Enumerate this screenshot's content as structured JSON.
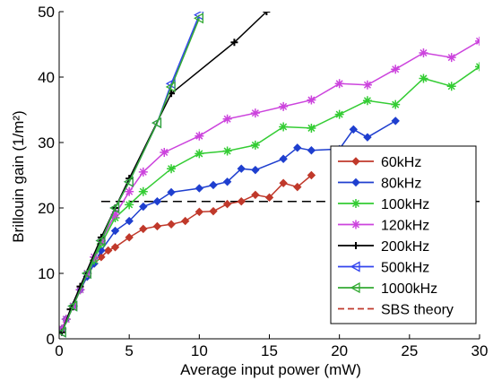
{
  "chart_data": {
    "type": "line",
    "xlabel": "Average input power (mW)",
    "ylabel": "Brillouin gain (1/m²)",
    "xlim": [
      0,
      30
    ],
    "ylim": [
      0,
      50
    ],
    "xticks": [
      0,
      5,
      10,
      15,
      20,
      25,
      30
    ],
    "yticks": [
      0,
      10,
      20,
      30,
      40,
      50
    ],
    "grid": false,
    "legend_position": "right-center",
    "series": [
      {
        "name": "60kHz",
        "color": "#c0392b",
        "marker": "diamond",
        "x": [
          0.2,
          0.5,
          1.0,
          1.5,
          2.0,
          2.5,
          3.0,
          3.5,
          4.0,
          5.0,
          6.0,
          7.0,
          8.0,
          9.0,
          10.0,
          11.0,
          12.0,
          13.0,
          14.0,
          15.0,
          16.0,
          17.0,
          18.0
        ],
        "y": [
          1.5,
          3.0,
          5.0,
          7.5,
          9.5,
          11.5,
          12.5,
          13.5,
          14.0,
          15.5,
          16.8,
          17.2,
          17.5,
          18.0,
          19.4,
          19.5,
          20.6,
          21.0,
          22.0,
          21.6,
          23.8,
          23.2,
          25.0
        ]
      },
      {
        "name": "80kHz",
        "color": "#1f3fcf",
        "marker": "diamond",
        "x": [
          0.2,
          0.5,
          1.0,
          1.5,
          2.0,
          2.5,
          3.0,
          4.0,
          5.0,
          6.0,
          7.0,
          8.0,
          10.0,
          11.0,
          12.0,
          13.0,
          14.0,
          16.0,
          17.0,
          18.0,
          20.0,
          21.0,
          22.0,
          24.0
        ],
        "y": [
          1.5,
          3.0,
          5.0,
          7.5,
          9.5,
          11.5,
          13.5,
          16.5,
          18.0,
          20.2,
          21.0,
          22.4,
          23.0,
          23.5,
          24.0,
          26.0,
          25.8,
          27.5,
          29.2,
          28.8,
          29.0,
          32.0,
          30.8,
          33.3
        ]
      },
      {
        "name": "100kHz",
        "color": "#33cc33",
        "marker": "star",
        "x": [
          0.2,
          0.5,
          1.0,
          1.5,
          2.0,
          2.5,
          3.0,
          4.0,
          5.0,
          6.0,
          8.0,
          10.0,
          12.0,
          14.0,
          16.0,
          18.0,
          20.0,
          22.0,
          24.0,
          26.0,
          28.0,
          30.0
        ],
        "y": [
          1.5,
          3.0,
          5.0,
          7.5,
          10.0,
          12.0,
          14.5,
          18.5,
          20.5,
          22.5,
          26.0,
          28.3,
          28.7,
          29.6,
          32.4,
          32.2,
          34.3,
          36.4,
          35.8,
          39.8,
          38.6,
          41.6
        ]
      },
      {
        "name": "120kHz",
        "color": "#cc44dd",
        "marker": "star",
        "x": [
          0.2,
          0.5,
          1.0,
          1.5,
          2.0,
          2.5,
          3.0,
          4.0,
          5.0,
          6.0,
          7.5,
          10.0,
          12.0,
          14.0,
          16.0,
          18.0,
          20.0,
          22.0,
          24.0,
          26.0,
          28.0,
          30.0
        ],
        "y": [
          1.5,
          3.0,
          5.0,
          7.5,
          10.0,
          12.5,
          15.0,
          19.0,
          22.5,
          25.5,
          28.5,
          31.0,
          33.6,
          34.5,
          35.5,
          36.5,
          39.0,
          38.8,
          41.2,
          43.7,
          43.0,
          45.5
        ]
      },
      {
        "name": "200kHz",
        "color": "#000000",
        "marker": "plus",
        "x": [
          0.2,
          0.8,
          1.5,
          3.0,
          4.0,
          5.0,
          8.0,
          12.5,
          14.8
        ],
        "y": [
          1.0,
          4.5,
          8.0,
          15.5,
          20.0,
          24.5,
          37.5,
          45.3,
          50.0
        ]
      },
      {
        "name": "500kHz",
        "color": "#3344ee",
        "marker": "triangle-left",
        "x": [
          0.2,
          1.0,
          2.0,
          3.0,
          4.0,
          5.0,
          7.0,
          8.0,
          10.0
        ],
        "y": [
          1.0,
          5.0,
          10.0,
          15.0,
          20.0,
          24.0,
          33.0,
          39.0,
          49.5
        ]
      },
      {
        "name": "1000kHz",
        "color": "#33aa33",
        "marker": "triangle-left",
        "x": [
          0.2,
          1.0,
          2.0,
          3.0,
          4.0,
          5.0,
          7.0,
          8.0,
          10.0
        ],
        "y": [
          1.0,
          5.0,
          10.0,
          15.0,
          20.0,
          24.0,
          33.0,
          38.5,
          49.0
        ]
      },
      {
        "name": "SBS theory",
        "color": "#c0392b",
        "marker": "none",
        "dashed": true,
        "x": [
          3.0,
          30.0
        ],
        "y": [
          21.0,
          21.0
        ]
      }
    ],
    "reference_line": {
      "y": 21.0,
      "color": "#000000",
      "dashed": true
    }
  }
}
